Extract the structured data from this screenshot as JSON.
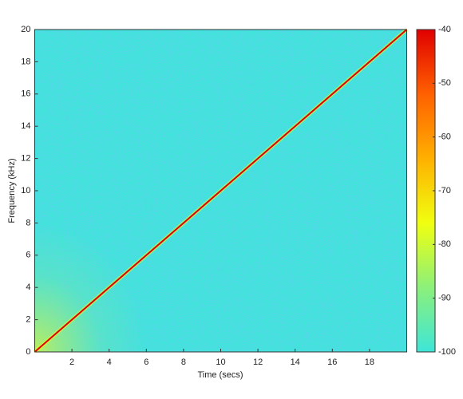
{
  "chart_data": {
    "type": "spectrogram",
    "xlabel": "Time (secs)",
    "ylabel": "Frequency (kHz)",
    "xlim": [
      0,
      20
    ],
    "xticks": [
      2,
      4,
      6,
      8,
      10,
      12,
      14,
      16,
      18
    ],
    "ylim": [
      0,
      20
    ],
    "yticks": [
      0,
      2,
      4,
      6,
      8,
      10,
      12,
      14,
      16,
      18,
      20
    ],
    "x": [
      0,
      20
    ],
    "series": [
      {
        "color": "#e00000",
        "values": [
          0,
          20
        ]
      }
    ],
    "clim": [
      -100,
      -40
    ],
    "cticks": [
      -100,
      -90,
      -80,
      -70,
      -60,
      -50,
      -40
    ],
    "colormap": [
      "#3ee6d8",
      "#8cf07a",
      "#f0ff10",
      "#ffb000",
      "#ff6000",
      "#e00000"
    ]
  }
}
